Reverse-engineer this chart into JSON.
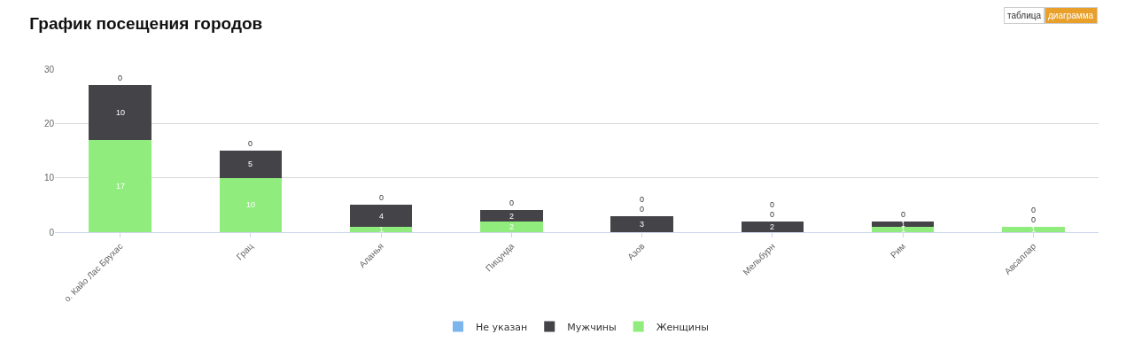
{
  "chart_data": {
    "type": "bar",
    "title": "График посещения городов",
    "categories": [
      "о. Кайо Лас Брухас",
      "Грац",
      "Аланья",
      "Пицунда",
      "Азов",
      "Мельбурн",
      "Рим",
      "Авсаллар"
    ],
    "series": [
      {
        "name": "Женщины",
        "color": "#90ed7d",
        "values": [
          17,
          10,
          1,
          2,
          0,
          0,
          1,
          1
        ]
      },
      {
        "name": "Мужчины",
        "color": "#434348",
        "values": [
          10,
          5,
          4,
          2,
          3,
          2,
          1,
          0
        ]
      },
      {
        "name": "Не указан",
        "color": "#7cb5ec",
        "values": [
          0,
          0,
          0,
          0,
          0,
          0,
          0,
          0
        ]
      }
    ],
    "stacked": true,
    "ylim": [
      0,
      30
    ],
    "yticks": [
      0,
      10,
      20,
      30
    ],
    "grid": "y",
    "legend": "bottom",
    "data_labels": true,
    "annotations": [
      "таблица",
      "диаграмма"
    ]
  }
}
